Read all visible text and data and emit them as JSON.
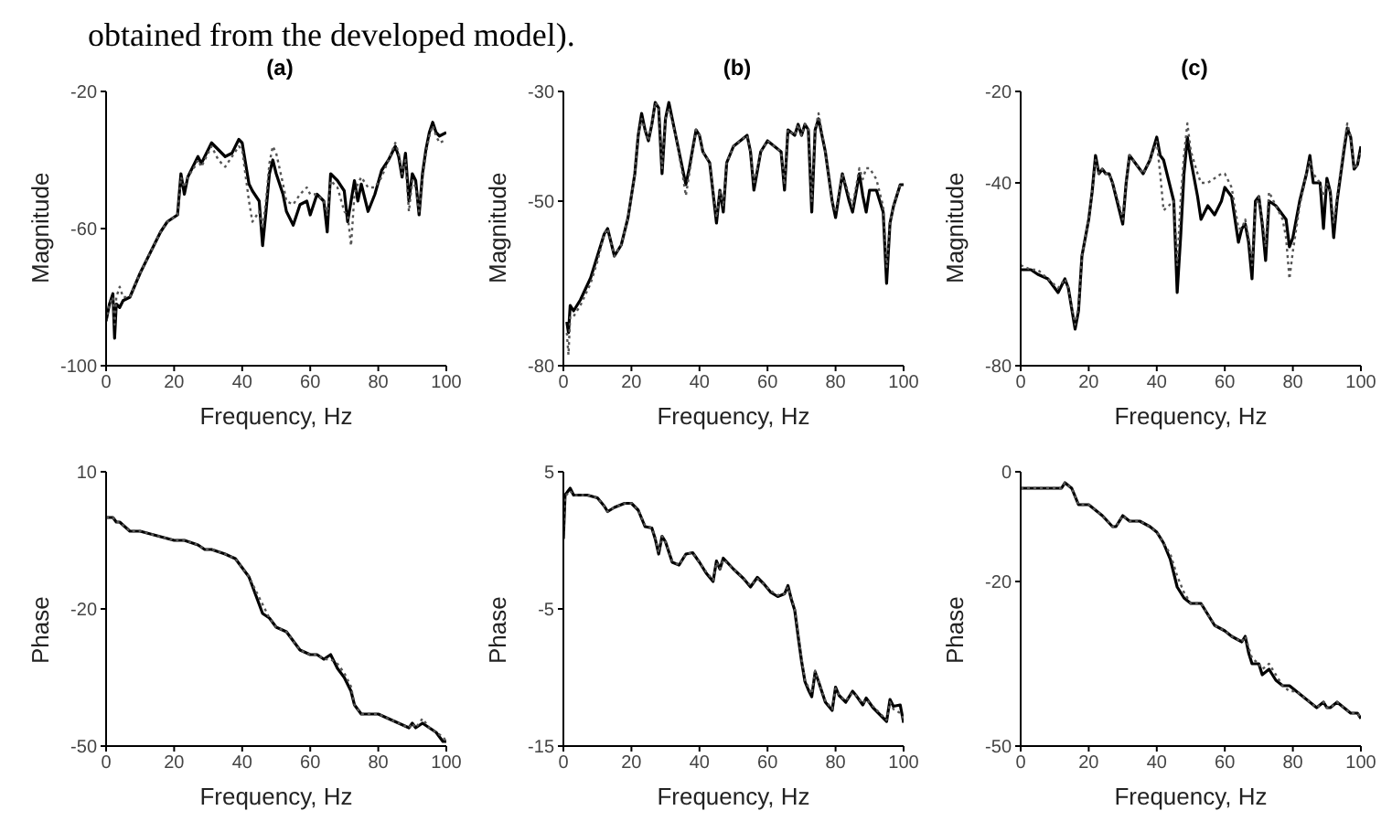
{
  "chart_data": [
    {
      "type": "line",
      "title": "(a)",
      "xlabel": "Frequency, Hz",
      "ylabel": "Magnitude",
      "annotations": [
        "obtained from the developed model)."
      ],
      "xlim": [
        0,
        100
      ],
      "xticks": [
        0,
        20,
        40,
        60,
        80,
        100
      ],
      "ylim": [
        -100,
        -20
      ],
      "yticks": [
        -100,
        -60,
        -20
      ],
      "grid": false,
      "series": [
        {
          "color": "#000000",
          "line_style": "solid",
          "x": [
            0,
            1,
            2,
            2.5,
            3,
            4,
            5,
            7,
            10,
            13,
            16,
            18,
            21,
            22,
            23,
            24,
            26,
            27,
            28,
            31,
            33,
            35,
            37,
            39,
            40,
            42,
            43,
            45,
            46,
            47,
            48,
            49,
            50,
            52,
            53,
            55,
            57,
            59,
            60,
            62,
            64,
            65,
            66,
            68,
            70,
            71,
            72,
            73,
            74,
            75,
            77,
            79,
            81,
            83,
            85,
            86,
            87,
            88,
            89,
            90,
            91,
            92,
            93,
            94,
            95,
            96,
            97,
            98,
            100
          ],
          "values": [
            -87,
            -82,
            -79,
            -92,
            -82,
            -83,
            -81,
            -80,
            -73,
            -67,
            -61,
            -58,
            -56,
            -44,
            -50,
            -45,
            -41,
            -39,
            -41,
            -35,
            -37,
            -39,
            -38,
            -34,
            -35,
            -47,
            -49,
            -52,
            -65,
            -55,
            -44,
            -40,
            -44,
            -50,
            -55,
            -59,
            -53,
            -52,
            -56,
            -50,
            -52,
            -61,
            -44,
            -46,
            -49,
            -58,
            -52,
            -46,
            -52,
            -47,
            -55,
            -50,
            -43,
            -40,
            -36,
            -39,
            -45,
            -38,
            -52,
            -44,
            -46,
            -56,
            -44,
            -37,
            -32,
            -29,
            -32,
            -33,
            -32
          ]
        },
        {
          "color": "#555555",
          "line_style": "dotted",
          "x": [
            0,
            1,
            2,
            2.5,
            3,
            4,
            5,
            7,
            10,
            13,
            16,
            18,
            21,
            22,
            23,
            24,
            26,
            27,
            28,
            31,
            33,
            35,
            37,
            39,
            40,
            42,
            43,
            45,
            46,
            47,
            48,
            49,
            50,
            52,
            53,
            55,
            57,
            59,
            60,
            62,
            64,
            65,
            66,
            68,
            70,
            71,
            72,
            73,
            74,
            75,
            77,
            79,
            81,
            83,
            85,
            86,
            87,
            88,
            89,
            90,
            91,
            92,
            93,
            94,
            95,
            96,
            97,
            98,
            100
          ],
          "values": [
            -87,
            -82,
            -80,
            -88,
            -80,
            -77,
            -80,
            -80,
            -73,
            -67,
            -61,
            -58,
            -56,
            -45,
            -48,
            -45,
            -42,
            -40,
            -42,
            -36,
            -40,
            -42,
            -39,
            -36,
            -37,
            -52,
            -58,
            -55,
            -60,
            -52,
            -41,
            -36,
            -38,
            -47,
            -52,
            -53,
            -50,
            -48,
            -50,
            -50,
            -52,
            -56,
            -46,
            -48,
            -55,
            -56,
            -65,
            -50,
            -47,
            -45,
            -48,
            -48,
            -45,
            -40,
            -35,
            -38,
            -44,
            -40,
            -55,
            -46,
            -48,
            -55,
            -45,
            -38,
            -33,
            -30,
            -33,
            -35,
            -34
          ]
        }
      ]
    },
    {
      "type": "line",
      "title": "(b)",
      "xlabel": "Frequency, Hz",
      "ylabel": "Magnitude",
      "xlim": [
        0,
        100
      ],
      "xticks": [
        0,
        20,
        40,
        60,
        80,
        100
      ],
      "ylim": [
        -80,
        -30
      ],
      "yticks": [
        -80,
        -50,
        -30
      ],
      "grid": false,
      "series": [
        {
          "color": "#000000",
          "line_style": "solid",
          "x": [
            1,
            1.5,
            2,
            3,
            5,
            8,
            10,
            12,
            13,
            15,
            17,
            19,
            21,
            22,
            23,
            24,
            25,
            26,
            27,
            28,
            29,
            30,
            31,
            33,
            35,
            36,
            37,
            39,
            40,
            41,
            43,
            45,
            46,
            47,
            48,
            50,
            52,
            54,
            55,
            56,
            58,
            60,
            62,
            64,
            65,
            66,
            68,
            69,
            70,
            71,
            72,
            73,
            74,
            75,
            77,
            79,
            80,
            82,
            84,
            85,
            87,
            88,
            89,
            90,
            92,
            94,
            95,
            96,
            97,
            99,
            100
          ],
          "values": [
            -72,
            -74,
            -69,
            -70,
            -68,
            -64,
            -60,
            -56,
            -55,
            -60,
            -58,
            -53,
            -45,
            -38,
            -34,
            -37,
            -39,
            -36,
            -32,
            -33,
            -45,
            -35,
            -32,
            -38,
            -44,
            -47,
            -44,
            -37,
            -38,
            -41,
            -43,
            -54,
            -48,
            -52,
            -43,
            -40,
            -39,
            -38,
            -41,
            -48,
            -41,
            -39,
            -40,
            -41,
            -48,
            -37,
            -38,
            -36,
            -38,
            -36,
            -37,
            -52,
            -37,
            -35,
            -41,
            -50,
            -53,
            -45,
            -50,
            -52,
            -45,
            -49,
            -52,
            -48,
            -48,
            -52,
            -65,
            -54,
            -51,
            -47,
            -47
          ]
        },
        {
          "color": "#555555",
          "line_style": "dotted",
          "x": [
            1,
            1.5,
            2,
            3,
            5,
            8,
            10,
            12,
            13,
            15,
            17,
            19,
            21,
            22,
            23,
            24,
            25,
            26,
            27,
            28,
            29,
            30,
            31,
            33,
            35,
            36,
            37,
            39,
            40,
            41,
            43,
            45,
            46,
            47,
            48,
            50,
            52,
            54,
            55,
            56,
            58,
            60,
            62,
            64,
            65,
            66,
            68,
            69,
            70,
            71,
            72,
            73,
            74,
            75,
            77,
            79,
            80,
            82,
            84,
            85,
            87,
            88,
            89,
            90,
            92,
            94,
            95,
            96,
            97,
            99,
            100
          ],
          "values": [
            -74,
            -78,
            -71,
            -71,
            -69,
            -65,
            -61,
            -56,
            -55,
            -60,
            -58,
            -53,
            -45,
            -38,
            -35,
            -37,
            -39,
            -36,
            -32,
            -33,
            -44,
            -35,
            -33,
            -38,
            -45,
            -49,
            -45,
            -37,
            -38,
            -41,
            -43,
            -53,
            -48,
            -51,
            -43,
            -40,
            -39,
            -38,
            -41,
            -47,
            -41,
            -39,
            -40,
            -41,
            -47,
            -37,
            -38,
            -36,
            -38,
            -36,
            -37,
            -50,
            -37,
            -34,
            -41,
            -50,
            -52,
            -45,
            -49,
            -51,
            -44,
            -46,
            -44,
            -44,
            -46,
            -51,
            -62,
            -54,
            -51,
            -47,
            -47
          ]
        }
      ]
    },
    {
      "type": "line",
      "title": "(c)",
      "xlabel": "Frequency, Hz",
      "ylabel": "Magnitude",
      "xlim": [
        0,
        100
      ],
      "xticks": [
        0,
        20,
        40,
        60,
        80,
        100
      ],
      "ylim": [
        -80,
        -20
      ],
      "yticks": [
        -80,
        -40,
        -20
      ],
      "grid": false,
      "series": [
        {
          "color": "#000000",
          "line_style": "solid",
          "x": [
            0,
            3,
            5,
            8,
            11,
            13,
            14,
            16,
            17,
            18,
            20,
            21,
            22,
            23,
            24,
            25,
            26,
            27,
            29,
            30,
            31,
            32,
            34,
            36,
            38,
            40,
            41,
            42,
            45,
            46,
            47,
            48,
            49,
            50,
            52,
            53,
            55,
            57,
            59,
            60,
            62,
            64,
            65,
            66,
            67,
            68,
            69,
            70,
            71,
            72,
            73,
            75,
            77,
            78,
            79,
            80,
            82,
            84,
            85,
            86,
            88,
            89,
            90,
            91,
            92,
            93,
            95,
            96,
            97,
            98,
            99,
            100
          ],
          "values": [
            -59,
            -59,
            -60,
            -61,
            -64,
            -61,
            -63,
            -72,
            -68,
            -56,
            -48,
            -42,
            -34,
            -38,
            -37,
            -38,
            -38,
            -40,
            -46,
            -49,
            -40,
            -34,
            -36,
            -38,
            -35,
            -30,
            -34,
            -35,
            -44,
            -64,
            -52,
            -38,
            -30,
            -35,
            -43,
            -48,
            -45,
            -47,
            -44,
            -41,
            -43,
            -53,
            -50,
            -49,
            -53,
            -61,
            -44,
            -43,
            -49,
            -57,
            -44,
            -45,
            -47,
            -48,
            -54,
            -52,
            -44,
            -38,
            -34,
            -40,
            -40,
            -50,
            -39,
            -42,
            -52,
            -44,
            -33,
            -28,
            -30,
            -37,
            -36,
            -32
          ]
        },
        {
          "color": "#555555",
          "line_style": "dotted",
          "x": [
            0,
            3,
            5,
            8,
            11,
            13,
            14,
            16,
            17,
            18,
            20,
            21,
            22,
            23,
            24,
            25,
            26,
            27,
            29,
            30,
            31,
            32,
            34,
            36,
            38,
            40,
            41,
            42,
            45,
            46,
            47,
            48,
            49,
            50,
            52,
            53,
            55,
            57,
            59,
            60,
            62,
            64,
            65,
            66,
            67,
            68,
            69,
            70,
            71,
            72,
            73,
            75,
            77,
            78,
            79,
            80,
            82,
            84,
            85,
            86,
            88,
            89,
            90,
            91,
            92,
            93,
            95,
            96,
            97,
            98,
            99,
            100
          ],
          "values": [
            -58,
            -59,
            -59,
            -61,
            -63,
            -61,
            -63,
            -71,
            -67,
            -56,
            -48,
            -42,
            -35,
            -38,
            -37,
            -38,
            -38,
            -40,
            -45,
            -48,
            -40,
            -34,
            -36,
            -38,
            -35,
            -31,
            -38,
            -46,
            -44,
            -58,
            -44,
            -34,
            -27,
            -33,
            -38,
            -40,
            -40,
            -39,
            -38,
            -38,
            -41,
            -50,
            -50,
            -48,
            -52,
            -58,
            -45,
            -43,
            -48,
            -54,
            -42,
            -45,
            -48,
            -52,
            -61,
            -55,
            -45,
            -38,
            -35,
            -38,
            -40,
            -43,
            -40,
            -42,
            -49,
            -43,
            -32,
            -27,
            -30,
            -37,
            -36,
            -33
          ]
        }
      ]
    },
    {
      "type": "line",
      "xlabel": "Frequency, Hz",
      "ylabel": "Phase",
      "xlim": [
        0,
        100
      ],
      "xticks": [
        0,
        20,
        40,
        60,
        80,
        100
      ],
      "ylim": [
        -50,
        10
      ],
      "yticks": [
        -50,
        -20,
        10
      ],
      "grid": false,
      "series": [
        {
          "color": "#000000",
          "line_style": "solid",
          "x": [
            0,
            2,
            3,
            4,
            7,
            10,
            15,
            20,
            21,
            23,
            27,
            29,
            31,
            35,
            38,
            40,
            42,
            44,
            46,
            48,
            50,
            53,
            55,
            57,
            60,
            62,
            64,
            66,
            68,
            70,
            72,
            73,
            75,
            77,
            80,
            83,
            86,
            89,
            90,
            91,
            93,
            95,
            97,
            99,
            100
          ],
          "values": [
            0,
            0,
            -1,
            -1,
            -3,
            -3,
            -4,
            -5,
            -5,
            -5,
            -6,
            -7,
            -7,
            -8,
            -9,
            -11,
            -13,
            -17,
            -21,
            -22,
            -24,
            -25,
            -27,
            -29,
            -30,
            -30,
            -31,
            -30,
            -33,
            -35,
            -38,
            -41,
            -43,
            -43,
            -43,
            -44,
            -45,
            -46,
            -45,
            -46,
            -45,
            -46,
            -47,
            -49,
            -49
          ]
        },
        {
          "color": "#555555",
          "line_style": "dotted",
          "x": [
            0,
            2,
            3,
            4,
            7,
            10,
            15,
            20,
            21,
            23,
            27,
            29,
            31,
            35,
            38,
            40,
            42,
            44,
            46,
            48,
            50,
            53,
            55,
            57,
            60,
            62,
            64,
            66,
            68,
            70,
            72,
            73,
            75,
            77,
            80,
            83,
            86,
            89,
            90,
            91,
            93,
            95,
            97,
            99,
            100
          ],
          "values": [
            0,
            0,
            -1,
            -1,
            -3,
            -3,
            -4,
            -5,
            -5,
            -5,
            -6,
            -7,
            -7,
            -8,
            -9,
            -11,
            -13,
            -16,
            -19,
            -22,
            -24,
            -25,
            -27,
            -29,
            -30,
            -30,
            -31,
            -31,
            -32,
            -34,
            -37,
            -41,
            -43,
            -43,
            -43,
            -44,
            -45,
            -46,
            -45,
            -46,
            -44,
            -46,
            -47,
            -48,
            -49
          ]
        }
      ]
    },
    {
      "type": "line",
      "xlabel": "Frequency, Hz",
      "ylabel": "Phase",
      "xlim": [
        0,
        100
      ],
      "xticks": [
        0,
        20,
        40,
        60,
        80,
        100
      ],
      "ylim": [
        -15,
        5
      ],
      "yticks": [
        -15,
        -5,
        5
      ],
      "grid": false,
      "series": [
        {
          "color": "#000000",
          "line_style": "solid",
          "x": [
            0,
            0.5,
            2,
            3,
            7,
            10,
            12,
            13,
            15,
            18,
            20,
            22,
            24,
            26,
            27,
            28,
            29,
            30,
            32,
            34,
            36,
            38,
            40,
            42,
            44,
            45,
            46,
            47,
            50,
            53,
            55,
            57,
            59,
            61,
            63,
            65,
            66,
            67,
            68,
            69,
            70,
            71,
            72,
            73,
            74,
            75,
            77,
            79,
            80,
            81,
            83,
            85,
            86,
            88,
            89,
            91,
            93,
            95,
            96,
            97,
            99,
            100
          ],
          "values": [
            0.1,
            3.3,
            3.8,
            3.3,
            3.3,
            3.1,
            2.5,
            2.1,
            2.4,
            2.7,
            2.7,
            2.2,
            1.0,
            0.9,
            0.1,
            -1.0,
            0.3,
            -0.1,
            -1.6,
            -1.8,
            -1.0,
            -0.9,
            -1.6,
            -2.4,
            -3.0,
            -1.5,
            -2.1,
            -1.3,
            -2.1,
            -2.8,
            -3.4,
            -2.7,
            -3.2,
            -3.8,
            -4.1,
            -3.9,
            -3.3,
            -4.3,
            -5.1,
            -7.0,
            -8.8,
            -10.3,
            -10.9,
            -11.4,
            -9.6,
            -10.3,
            -11.8,
            -12.4,
            -10.7,
            -11.3,
            -11.8,
            -11.0,
            -11.3,
            -12.0,
            -11.5,
            -12.2,
            -12.7,
            -13.2,
            -11.6,
            -12.1,
            -12.0,
            -13.3
          ]
        },
        {
          "color": "#555555",
          "line_style": "dotted",
          "x": [
            0,
            0.5,
            2,
            3,
            7,
            10,
            12,
            13,
            15,
            18,
            20,
            22,
            24,
            26,
            27,
            28,
            29,
            30,
            32,
            34,
            36,
            38,
            40,
            42,
            44,
            45,
            46,
            47,
            50,
            53,
            55,
            57,
            59,
            61,
            63,
            65,
            66,
            67,
            68,
            69,
            70,
            71,
            72,
            73,
            74,
            75,
            77,
            79,
            80,
            81,
            83,
            85,
            86,
            88,
            89,
            91,
            93,
            95,
            96,
            97,
            99,
            100
          ],
          "values": [
            0.5,
            3.2,
            3.6,
            3.3,
            3.3,
            3.1,
            2.5,
            2.1,
            2.4,
            2.7,
            2.7,
            2.2,
            1.1,
            0.9,
            0.2,
            -0.9,
            0.3,
            -0.1,
            -1.5,
            -1.8,
            -1.0,
            -0.9,
            -1.6,
            -2.3,
            -2.9,
            -1.6,
            -2.1,
            -1.4,
            -2.1,
            -2.8,
            -3.3,
            -2.8,
            -3.2,
            -3.7,
            -4.0,
            -3.9,
            -3.4,
            -4.2,
            -5.0,
            -6.8,
            -8.6,
            -10.2,
            -10.7,
            -11.2,
            -9.5,
            -10.3,
            -11.7,
            -12.3,
            -10.8,
            -11.3,
            -11.7,
            -11.1,
            -11.3,
            -11.9,
            -11.6,
            -12.1,
            -12.6,
            -13.1,
            -11.8,
            -12.3,
            -12.6,
            -13.0
          ]
        }
      ]
    },
    {
      "type": "line",
      "xlabel": "Frequency, Hz",
      "ylabel": "Phase",
      "xlim": [
        0,
        100
      ],
      "xticks": [
        0,
        20,
        40,
        60,
        80,
        100
      ],
      "ylim": [
        -50,
        0
      ],
      "yticks": [
        -50,
        -20,
        0
      ],
      "grid": false,
      "series": [
        {
          "color": "#000000",
          "line_style": "solid",
          "x": [
            0,
            5,
            10,
            12,
            13,
            15,
            17,
            20,
            22,
            24,
            27,
            28,
            30,
            32,
            35,
            38,
            40,
            42,
            44,
            46,
            48,
            50,
            53,
            55,
            57,
            60,
            62,
            65,
            66,
            67,
            68,
            70,
            71,
            73,
            75,
            77,
            79,
            81,
            83,
            85,
            87,
            89,
            90,
            91,
            93,
            95,
            97,
            99,
            100
          ],
          "values": [
            -3,
            -3,
            -3,
            -3,
            -2,
            -3,
            -6,
            -6,
            -7,
            -8,
            -10,
            -10,
            -8,
            -9,
            -9,
            -10,
            -11,
            -13,
            -16,
            -21,
            -23,
            -24,
            -24,
            -26,
            -28,
            -29,
            -30,
            -31,
            -30,
            -33,
            -35,
            -35,
            -37,
            -36,
            -38,
            -39,
            -39,
            -40,
            -41,
            -42,
            -43,
            -42,
            -43,
            -43,
            -42,
            -43,
            -44,
            -44,
            -45
          ]
        },
        {
          "color": "#555555",
          "line_style": "dotted",
          "x": [
            0,
            5,
            10,
            12,
            13,
            15,
            17,
            20,
            22,
            24,
            27,
            28,
            30,
            32,
            35,
            38,
            40,
            42,
            44,
            46,
            48,
            50,
            53,
            55,
            57,
            60,
            62,
            65,
            66,
            67,
            68,
            70,
            71,
            73,
            75,
            77,
            79,
            81,
            83,
            85,
            87,
            89,
            90,
            91,
            93,
            95,
            97,
            99,
            100
          ],
          "values": [
            -3,
            -3,
            -3,
            -3,
            -2,
            -3,
            -6,
            -6,
            -7,
            -8,
            -10,
            -10,
            -8,
            -9,
            -9,
            -10,
            -11,
            -13,
            -15,
            -19,
            -22,
            -24,
            -24,
            -26,
            -28,
            -29,
            -30,
            -31,
            -30,
            -32,
            -34,
            -35,
            -36,
            -35,
            -37,
            -39,
            -40,
            -40,
            -41,
            -42,
            -43,
            -42,
            -43,
            -43,
            -42,
            -43,
            -44,
            -44,
            -45
          ]
        }
      ]
    }
  ]
}
